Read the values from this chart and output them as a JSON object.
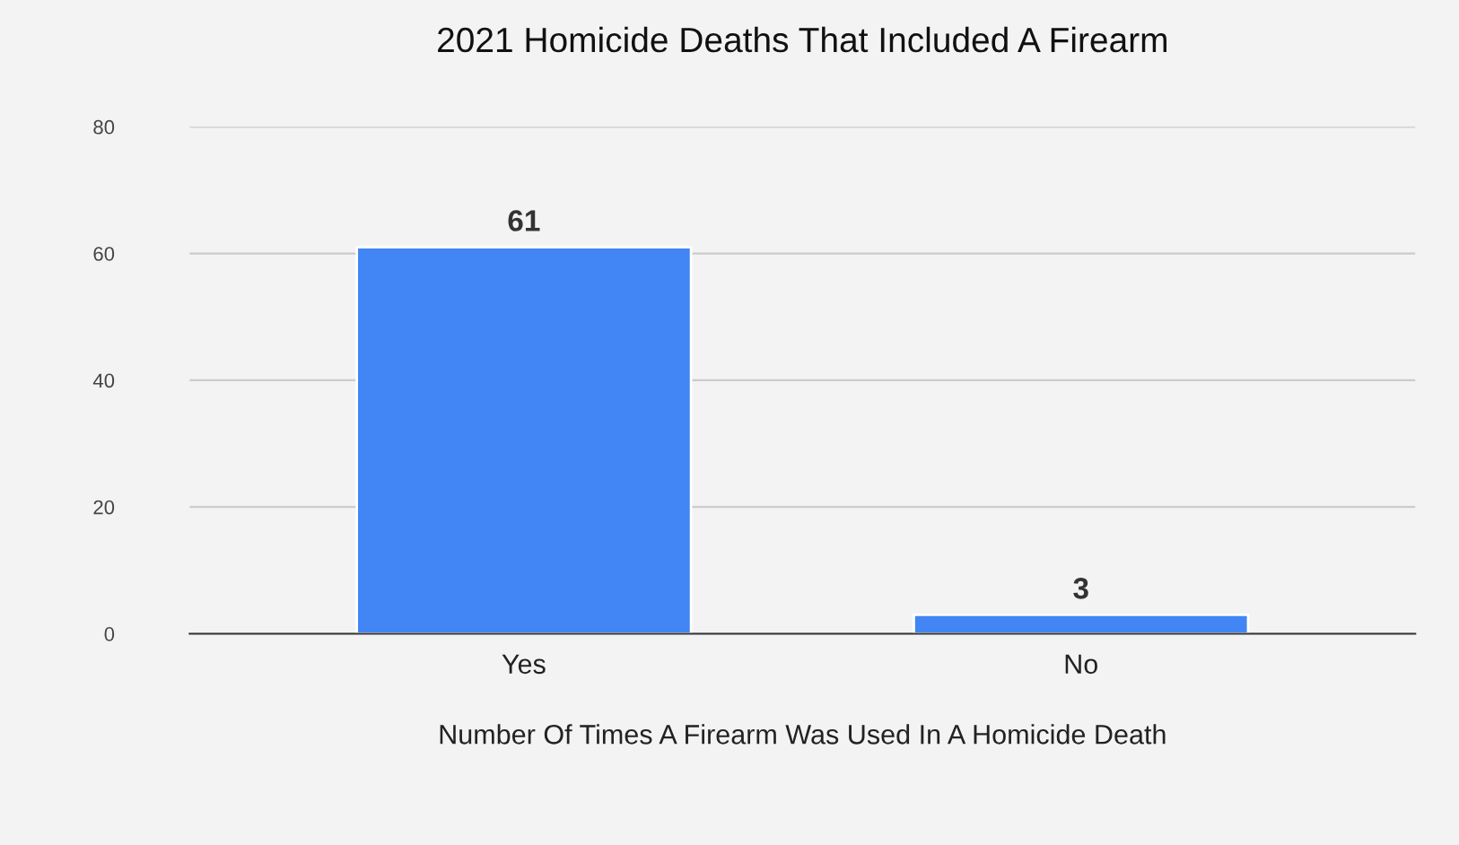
{
  "chart_data": {
    "type": "bar",
    "title": "2021 Homicide Deaths That Included A Firearm",
    "xlabel": "Number Of Times A Firearm Was Used In A Homicide Death",
    "categories": [
      "Yes",
      "No"
    ],
    "values": [
      61,
      3
    ],
    "color": "#4285f4",
    "ylim": [
      0,
      80
    ],
    "yticks": [
      0,
      20,
      40,
      60,
      80
    ],
    "grid": "y",
    "data_labels": true
  }
}
